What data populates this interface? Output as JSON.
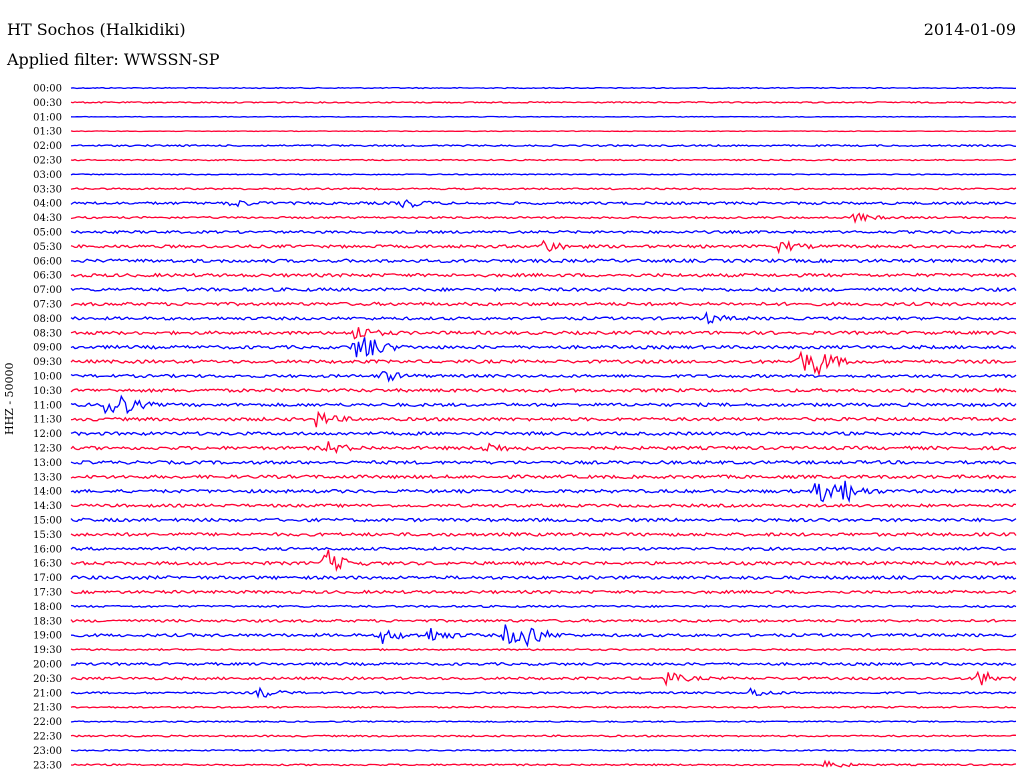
{
  "header": {
    "station": "HT Sochos (Halkidiki)",
    "date": "2014-01-09",
    "filter": "Applied filter: WWSSN-SP"
  },
  "chart_data": {
    "type": "line",
    "subtype": "helicorder",
    "ylabel": "HHZ - 50000",
    "row_labels": [
      "00:00",
      "00:30",
      "01:00",
      "01:30",
      "02:00",
      "02:30",
      "03:00",
      "03:30",
      "04:00",
      "04:30",
      "05:00",
      "05:30",
      "06:00",
      "06:30",
      "07:00",
      "07:30",
      "08:00",
      "08:30",
      "09:00",
      "09:30",
      "10:00",
      "10:30",
      "11:00",
      "11:30",
      "12:00",
      "12:30",
      "13:00",
      "13:30",
      "14:00",
      "14:30",
      "15:00",
      "15:30",
      "16:00",
      "16:30",
      "17:00",
      "17:30",
      "18:00",
      "18:30",
      "19:00",
      "19:30",
      "20:00",
      "20:30",
      "21:00",
      "21:30",
      "22:00",
      "22:30",
      "23:00",
      "23:30"
    ],
    "colors": [
      "#0000ff",
      "#ff0033"
    ],
    "noise_level": [
      0.3,
      0.4,
      0.2,
      0.2,
      0.5,
      0.4,
      0.3,
      0.5,
      0.8,
      0.6,
      0.8,
      0.9,
      1.0,
      1.0,
      1.0,
      1.0,
      0.9,
      1.0,
      1.0,
      1.0,
      0.9,
      1.0,
      1.0,
      1.0,
      1.0,
      1.0,
      1.0,
      1.0,
      1.0,
      0.9,
      1.0,
      1.0,
      0.9,
      1.0,
      1.0,
      0.9,
      0.6,
      0.8,
      0.9,
      0.5,
      0.8,
      0.8,
      0.6,
      0.5,
      0.4,
      0.5,
      0.4,
      0.5
    ],
    "events": [
      {
        "row": 8,
        "t": 0.35,
        "amp": 6
      },
      {
        "row": 8,
        "t": 0.17,
        "amp": 4
      },
      {
        "row": 9,
        "t": 0.83,
        "amp": 5
      },
      {
        "row": 11,
        "t": 0.5,
        "amp": 7
      },
      {
        "row": 11,
        "t": 0.75,
        "amp": 6
      },
      {
        "row": 16,
        "t": 0.67,
        "amp": 6
      },
      {
        "row": 17,
        "t": 0.3,
        "amp": 8
      },
      {
        "row": 18,
        "t": 0.31,
        "amp": 12
      },
      {
        "row": 18,
        "t": 0.3,
        "amp": 10
      },
      {
        "row": 19,
        "t": 0.77,
        "amp": 14
      },
      {
        "row": 19,
        "t": 0.79,
        "amp": 12
      },
      {
        "row": 20,
        "t": 0.33,
        "amp": 6
      },
      {
        "row": 22,
        "t": 0.04,
        "amp": 28
      },
      {
        "row": 23,
        "t": 0.26,
        "amp": 8
      },
      {
        "row": 25,
        "t": 0.27,
        "amp": 7
      },
      {
        "row": 25,
        "t": 0.44,
        "amp": 6
      },
      {
        "row": 28,
        "t": 0.79,
        "amp": 14
      },
      {
        "row": 28,
        "t": 0.81,
        "amp": 18
      },
      {
        "row": 33,
        "t": 0.27,
        "amp": 14
      },
      {
        "row": 38,
        "t": 0.46,
        "amp": 12
      },
      {
        "row": 38,
        "t": 0.48,
        "amp": 14
      },
      {
        "row": 38,
        "t": 0.33,
        "amp": 8
      },
      {
        "row": 38,
        "t": 0.38,
        "amp": 8
      },
      {
        "row": 41,
        "t": 0.96,
        "amp": 10
      },
      {
        "row": 41,
        "t": 0.63,
        "amp": 7
      },
      {
        "row": 42,
        "t": 0.2,
        "amp": 6
      },
      {
        "row": 42,
        "t": 0.72,
        "amp": 5
      },
      {
        "row": 47,
        "t": 0.8,
        "amp": 5
      }
    ]
  }
}
